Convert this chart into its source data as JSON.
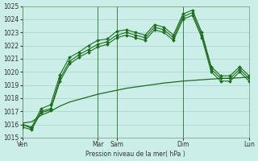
{
  "xlabel": "Pression niveau de la mer( hPa )",
  "ylim": [
    1015,
    1025
  ],
  "yticks": [
    1015,
    1016,
    1017,
    1018,
    1019,
    1020,
    1021,
    1022,
    1023,
    1024,
    1025
  ],
  "bg_color": "#cceee8",
  "grid_color": "#aad8d0",
  "line_color": "#1a6e1a",
  "xtick_labels": [
    "Ven",
    "Mar",
    "Sam",
    "Dim",
    "Lun"
  ],
  "xtick_positions": [
    0,
    8,
    10,
    17,
    24
  ],
  "n_points": 25,
  "line1_y": [
    1015.8,
    1015.6,
    1017.0,
    1017.2,
    1019.5,
    1020.8,
    1021.3,
    1021.7,
    1022.1,
    1022.3,
    1022.8,
    1023.0,
    1022.8,
    1022.6,
    1023.4,
    1023.2,
    1022.6,
    1024.2,
    1024.5,
    1022.8,
    1020.2,
    1019.5,
    1019.5,
    1020.2,
    1019.5
  ],
  "line2_y": [
    1016.0,
    1015.8,
    1017.2,
    1017.5,
    1019.8,
    1021.1,
    1021.5,
    1022.0,
    1022.4,
    1022.5,
    1023.1,
    1023.2,
    1023.0,
    1022.8,
    1023.6,
    1023.4,
    1022.8,
    1024.4,
    1024.7,
    1023.0,
    1020.4,
    1019.7,
    1019.7,
    1020.4,
    1019.7
  ],
  "line3_y": [
    1016.0,
    1015.7,
    1016.9,
    1017.1,
    1019.3,
    1020.6,
    1021.1,
    1021.5,
    1021.9,
    1022.1,
    1022.6,
    1022.8,
    1022.6,
    1022.4,
    1023.2,
    1023.0,
    1022.4,
    1024.0,
    1024.3,
    1022.6,
    1020.0,
    1019.3,
    1019.3,
    1020.0,
    1019.3
  ],
  "line4_y": [
    1016.1,
    1016.2,
    1016.7,
    1017.0,
    1017.4,
    1017.7,
    1017.9,
    1018.1,
    1018.3,
    1018.45,
    1018.6,
    1018.75,
    1018.85,
    1018.95,
    1019.05,
    1019.15,
    1019.22,
    1019.3,
    1019.35,
    1019.4,
    1019.45,
    1019.5,
    1019.52,
    1019.55,
    1019.6
  ]
}
